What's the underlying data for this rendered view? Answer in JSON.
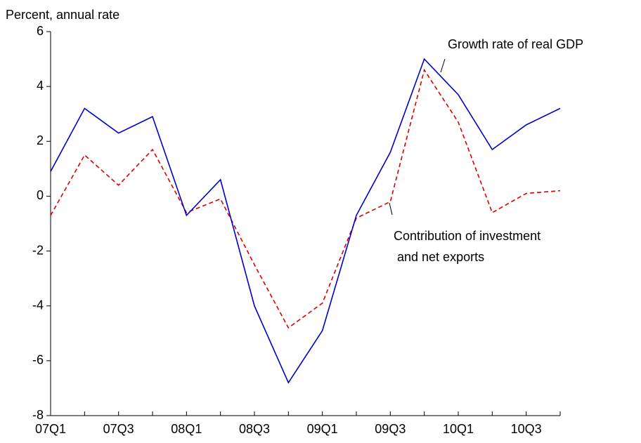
{
  "chart_data": {
    "type": "line",
    "y_label": "Percent, annual rate",
    "categories": [
      "07Q1",
      null,
      "07Q3",
      null,
      "08Q1",
      null,
      "08Q3",
      null,
      "09Q1",
      null,
      "09Q3",
      null,
      "10Q1",
      null,
      "10Q3",
      null
    ],
    "series": [
      {
        "name": "Growth rate of real GDP",
        "color": "#0000cc",
        "dash": false,
        "values": [
          0.9,
          3.2,
          2.3,
          2.9,
          -0.7,
          0.6,
          -4.0,
          -6.8,
          -4.9,
          -0.7,
          1.6,
          5.0,
          3.7,
          1.7,
          2.6,
          3.2
        ]
      },
      {
        "name": [
          "Contribution of investment",
          " and net exports"
        ],
        "color": "#dd0000",
        "dash": true,
        "values": [
          -0.7,
          1.5,
          0.4,
          1.7,
          -0.6,
          -0.1,
          -2.5,
          -4.8,
          -3.9,
          -0.8,
          -0.2,
          4.6,
          2.7,
          -0.6,
          0.1,
          0.2
        ]
      }
    ],
    "ylim": [
      -8,
      6
    ],
    "yticks": [
      -8,
      -6,
      -4,
      -2,
      0,
      2,
      4,
      6
    ],
    "grid": false
  }
}
